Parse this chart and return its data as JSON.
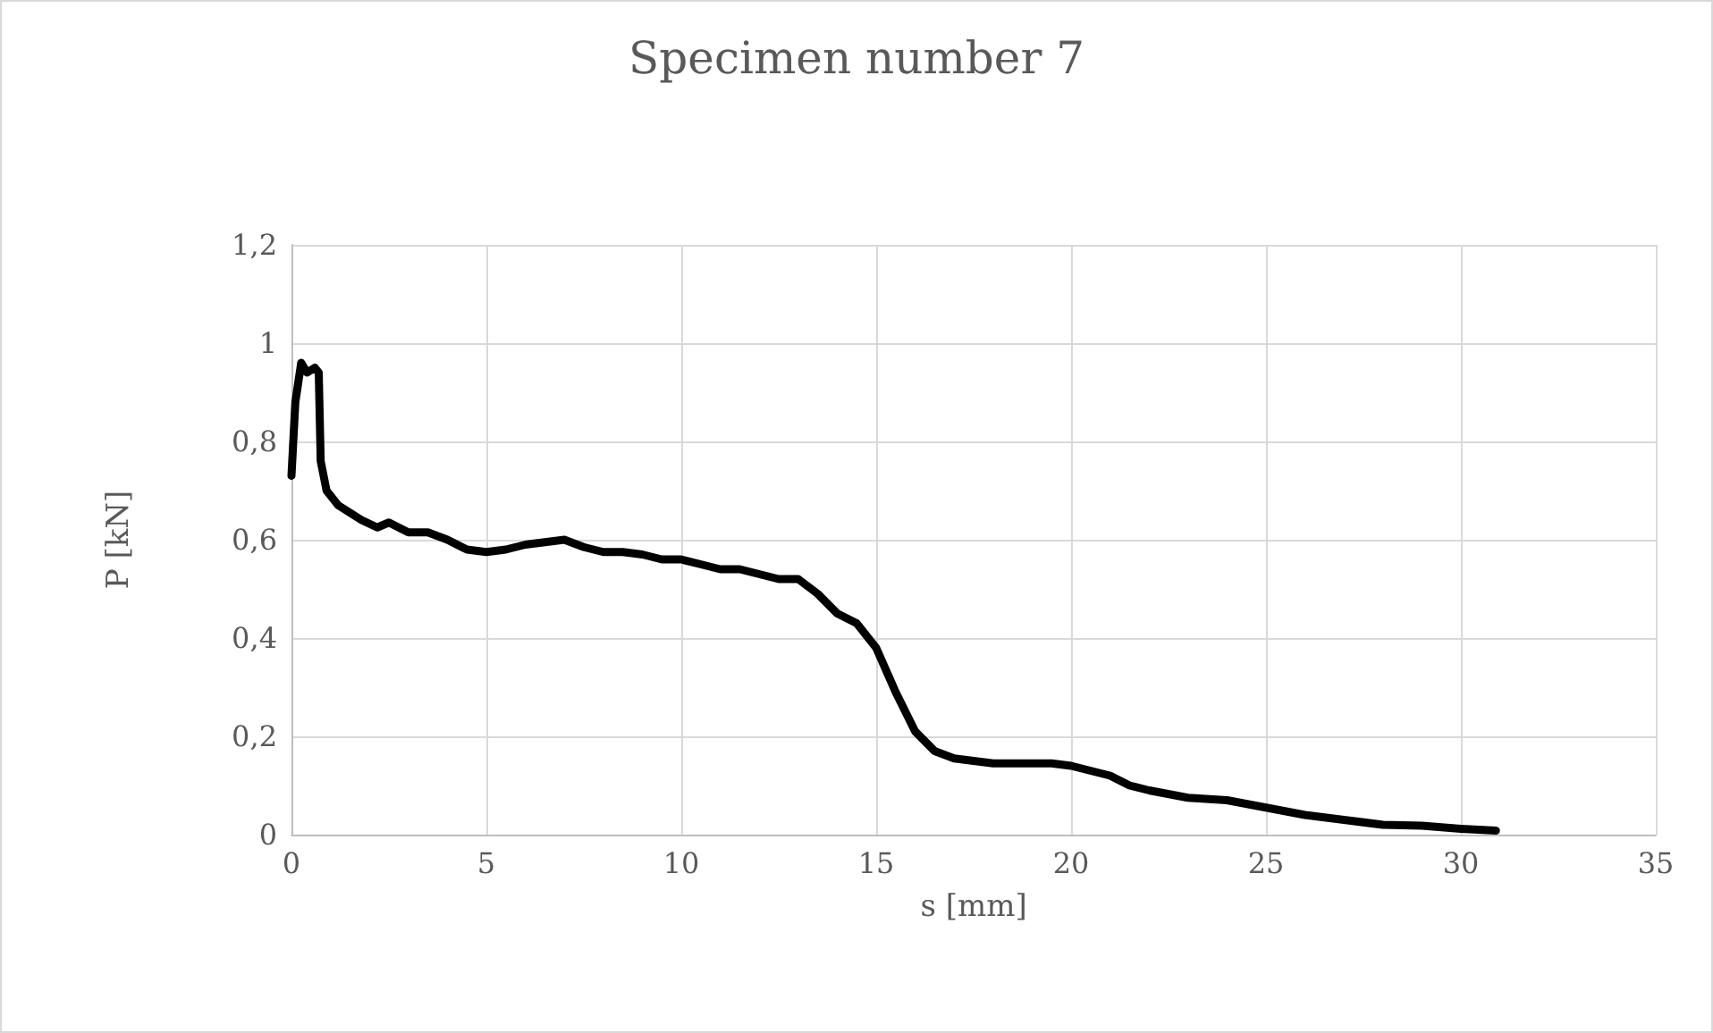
{
  "chart_data": {
    "type": "line",
    "title": "Specimen number 7",
    "xlabel": "s [mm]",
    "ylabel": "P [kN]",
    "x": [
      0,
      0.1,
      0.25,
      0.4,
      0.6,
      0.7,
      0.75,
      0.9,
      1.2,
      1.8,
      2.2,
      2.5,
      3,
      3.5,
      4,
      4.5,
      5,
      5.5,
      6,
      6.5,
      7,
      7.5,
      8,
      8.5,
      9,
      9.5,
      10,
      10.5,
      11,
      11.5,
      12,
      12.5,
      13,
      13.5,
      14,
      14.5,
      15,
      15.5,
      16,
      16.5,
      17,
      18,
      19,
      19.5,
      20,
      20.5,
      21,
      21.5,
      22,
      23,
      24,
      25,
      26,
      27,
      28,
      29,
      30,
      30.9
    ],
    "series": [
      {
        "color": "#000000",
        "values": [
          0.73,
          0.88,
          0.96,
          0.94,
          0.95,
          0.94,
          0.76,
          0.7,
          0.67,
          0.64,
          0.625,
          0.635,
          0.615,
          0.615,
          0.6,
          0.58,
          0.575,
          0.58,
          0.59,
          0.595,
          0.6,
          0.585,
          0.575,
          0.575,
          0.57,
          0.56,
          0.56,
          0.55,
          0.54,
          0.54,
          0.53,
          0.52,
          0.52,
          0.49,
          0.45,
          0.43,
          0.38,
          0.29,
          0.21,
          0.17,
          0.155,
          0.145,
          0.145,
          0.145,
          0.14,
          0.13,
          0.12,
          0.1,
          0.09,
          0.075,
          0.07,
          0.055,
          0.04,
          0.03,
          0.02,
          0.018,
          0.012,
          0.008
        ]
      }
    ],
    "xlim": [
      0,
      35
    ],
    "xticks": [
      0,
      5,
      10,
      15,
      20,
      25,
      30,
      35
    ],
    "ylim": [
      0,
      1.2
    ],
    "yticks": [
      0,
      {
        "value": 0.2,
        "label": "0,2"
      },
      {
        "value": 0.4,
        "label": "0,4"
      },
      {
        "value": 0.6,
        "label": "0,6"
      },
      {
        "value": 0.8,
        "label": "0,8"
      },
      1,
      {
        "value": 1.2,
        "label": "1,2"
      }
    ],
    "grid": true,
    "marker": "none",
    "line_style": "solid"
  }
}
